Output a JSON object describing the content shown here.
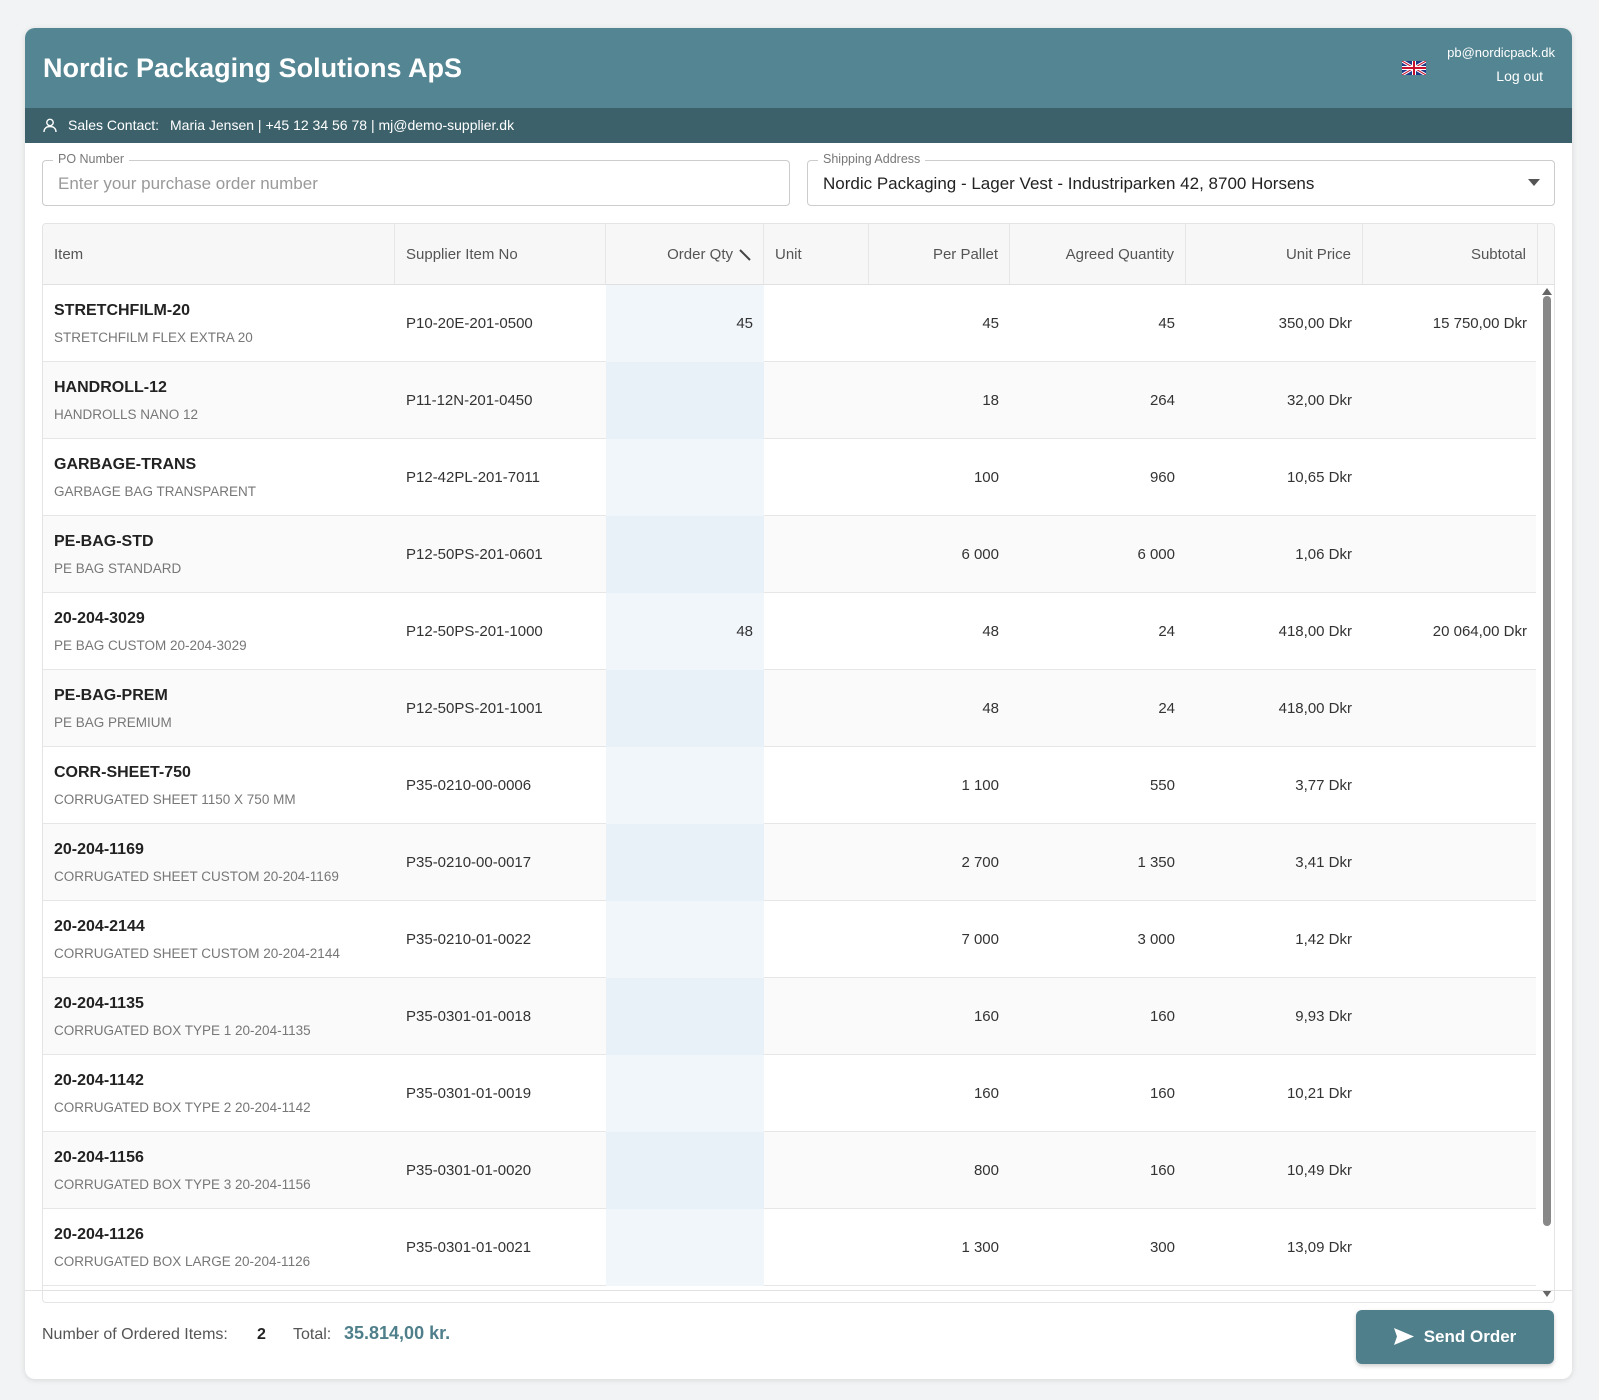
{
  "header": {
    "title": "Nordic Packaging Solutions ApS",
    "email": "pb@nordicpack.dk",
    "logout": "Log out"
  },
  "contact": {
    "label": "Sales Contact:",
    "text": "Maria Jensen | +45 12 34 56 78 | mj@demo-supplier.dk"
  },
  "po": {
    "label": "PO Number",
    "placeholder": "Enter your purchase order number"
  },
  "shipping": {
    "label": "Shipping Address",
    "value": "Nordic Packaging - Lager Vest - Industriparken 42, 8700 Horsens"
  },
  "table": {
    "columns": [
      "Item",
      "Supplier Item No",
      "Order Qty",
      "Unit",
      "Per Pallet",
      "Agreed Quantity",
      "Unit Price",
      "Subtotal"
    ],
    "rows": [
      {
        "code": "STRETCHFILM-20",
        "description": "STRETCHFILM FLEX EXTRA 20",
        "supplier_no": "P10-20E-201-0500",
        "order_qty": "45",
        "per_pallet": "45",
        "agreed_qty": "45",
        "unit_price": "350,00 Dkr",
        "subtotal": "15 750,00 Dkr"
      },
      {
        "code": "HANDROLL-12",
        "description": "HANDROLLS NANO 12",
        "supplier_no": "P11-12N-201-0450",
        "order_qty": null,
        "per_pallet": "18",
        "agreed_qty": "264",
        "unit_price": "32,00 Dkr",
        "subtotal": null
      },
      {
        "code": "GARBAGE-TRANS",
        "description": "GARBAGE BAG TRANSPARENT",
        "supplier_no": "P12-42PL-201-7011",
        "order_qty": null,
        "per_pallet": "100",
        "agreed_qty": "960",
        "unit_price": "10,65 Dkr",
        "subtotal": null
      },
      {
        "code": "PE-BAG-STD",
        "description": "PE BAG STANDARD",
        "supplier_no": "P12-50PS-201-0601",
        "order_qty": null,
        "per_pallet": "6 000",
        "agreed_qty": "6 000",
        "unit_price": "1,06 Dkr",
        "subtotal": null
      },
      {
        "code": "20-204-3029",
        "description": "PE BAG CUSTOM 20-204-3029",
        "supplier_no": "P12-50PS-201-1000",
        "order_qty": "48",
        "per_pallet": "48",
        "agreed_qty": "24",
        "unit_price": "418,00 Dkr",
        "subtotal": "20 064,00 Dkr"
      },
      {
        "code": "PE-BAG-PREM",
        "description": "PE BAG PREMIUM",
        "supplier_no": "P12-50PS-201-1001",
        "order_qty": null,
        "per_pallet": "48",
        "agreed_qty": "24",
        "unit_price": "418,00 Dkr",
        "subtotal": null
      },
      {
        "code": "CORR-SHEET-750",
        "description": "CORRUGATED SHEET 1150 X 750 MM",
        "supplier_no": "P35-0210-00-0006",
        "order_qty": null,
        "per_pallet": "1 100",
        "agreed_qty": "550",
        "unit_price": "3,77 Dkr",
        "subtotal": null
      },
      {
        "code": "20-204-1169",
        "description": "CORRUGATED SHEET CUSTOM 20-204-1169",
        "supplier_no": "P35-0210-00-0017",
        "order_qty": null,
        "per_pallet": "2 700",
        "agreed_qty": "1 350",
        "unit_price": "3,41 Dkr",
        "subtotal": null
      },
      {
        "code": "20-204-2144",
        "description": "CORRUGATED SHEET CUSTOM 20-204-2144",
        "supplier_no": "P35-0210-01-0022",
        "order_qty": null,
        "per_pallet": "7 000",
        "agreed_qty": "3 000",
        "unit_price": "1,42 Dkr",
        "subtotal": null
      },
      {
        "code": "20-204-1135",
        "description": "CORRUGATED BOX TYPE 1 20-204-1135",
        "supplier_no": "P35-0301-01-0018",
        "order_qty": null,
        "per_pallet": "160",
        "agreed_qty": "160",
        "unit_price": "9,93 Dkr",
        "subtotal": null
      },
      {
        "code": "20-204-1142",
        "description": "CORRUGATED BOX TYPE 2 20-204-1142",
        "supplier_no": "P35-0301-01-0019",
        "order_qty": null,
        "per_pallet": "160",
        "agreed_qty": "160",
        "unit_price": "10,21 Dkr",
        "subtotal": null
      },
      {
        "code": "20-204-1156",
        "description": "CORRUGATED BOX TYPE 3 20-204-1156",
        "supplier_no": "P35-0301-01-0020",
        "order_qty": null,
        "per_pallet": "800",
        "agreed_qty": "160",
        "unit_price": "10,49 Dkr",
        "subtotal": null
      },
      {
        "code": "20-204-1126",
        "description": "CORRUGATED BOX LARGE 20-204-1126",
        "supplier_no": "P35-0301-01-0021",
        "order_qty": null,
        "per_pallet": "1 300",
        "agreed_qty": "300",
        "unit_price": "13,09 Dkr",
        "subtotal": null
      }
    ]
  },
  "footer": {
    "items_label": "Number of Ordered Items:",
    "items_count": 2,
    "total_label": "Total:",
    "total": "35.814,00 kr.",
    "button": "Send Order"
  }
}
